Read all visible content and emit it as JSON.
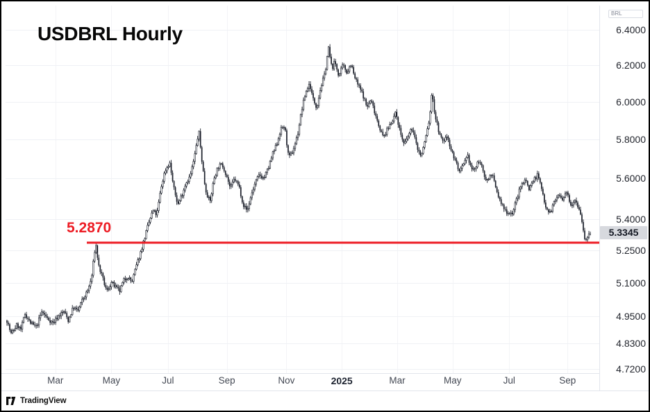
{
  "header": {
    "title": "USDBRL Hourly"
  },
  "level": {
    "label": "5.2870"
  },
  "badge": {
    "label": "5.3345"
  },
  "axis": {
    "currency_label": "BRL"
  },
  "footer": {
    "brand": "TradingView"
  },
  "colors": {
    "up_body": "#ffffff",
    "down_body": "#1a1e29",
    "wick": "#1a1e29",
    "grid_h": "#eff1f5",
    "grid_v": "#f3f4f7",
    "axis_line": "#e2e5ec",
    "level_line": "#ed1c24",
    "badge_bg": "#d7d9de",
    "badge_text": "#131722",
    "tick_text": "#23262e",
    "time_text": "#434853"
  },
  "chart_data": {
    "type": "candlestick",
    "title": "USDBRL Hourly",
    "symbol": "USDBRL",
    "interval": "Hourly",
    "quote_currency": "BRL",
    "y_scale": "log",
    "ylim": [
      4.7,
      6.55
    ],
    "grid": true,
    "last_price": 5.3345,
    "support_level": 5.287,
    "support_level_label": "5.2870",
    "price_ticks": [
      {
        "label": "6.4000",
        "value": 6.4
      },
      {
        "label": "6.2000",
        "value": 6.2
      },
      {
        "label": "6.0000",
        "value": 6.0
      },
      {
        "label": "5.8000",
        "value": 5.8
      },
      {
        "label": "5.6000",
        "value": 5.6
      },
      {
        "label": "5.4000",
        "value": 5.4
      },
      {
        "label": "5.2500",
        "value": 5.25
      },
      {
        "label": "5.1000",
        "value": 5.1
      },
      {
        "label": "4.9500",
        "value": 4.95
      },
      {
        "label": "4.8300",
        "value": 4.83
      },
      {
        "label": "4.7200",
        "value": 4.72
      }
    ],
    "time_ticks": [
      {
        "label": "Mar",
        "t": 0.083,
        "bold": false
      },
      {
        "label": "May",
        "t": 0.179,
        "bold": false
      },
      {
        "label": "Jul",
        "t": 0.276,
        "bold": false
      },
      {
        "label": "Sep",
        "t": 0.377,
        "bold": false
      },
      {
        "label": "Nov",
        "t": 0.479,
        "bold": false
      },
      {
        "label": "2025",
        "t": 0.574,
        "bold": true
      },
      {
        "label": "Mar",
        "t": 0.669,
        "bold": false
      },
      {
        "label": "May",
        "t": 0.764,
        "bold": false
      },
      {
        "label": "Jul",
        "t": 0.861,
        "bold": false
      },
      {
        "label": "Sep",
        "t": 0.961,
        "bold": false
      }
    ],
    "bar_count": 420,
    "path": [
      [
        0,
        4.93
      ],
      [
        0.007,
        4.87
      ],
      [
        0.017,
        4.91
      ],
      [
        0.024,
        4.89
      ],
      [
        0.031,
        4.96
      ],
      [
        0.04,
        4.92
      ],
      [
        0.05,
        4.9
      ],
      [
        0.06,
        4.97
      ],
      [
        0.069,
        4.94
      ],
      [
        0.079,
        4.92
      ],
      [
        0.088,
        4.95
      ],
      [
        0.098,
        4.97
      ],
      [
        0.105,
        4.93
      ],
      [
        0.114,
        4.99
      ],
      [
        0.121,
        4.97
      ],
      [
        0.129,
        5.02
      ],
      [
        0.138,
        5.06
      ],
      [
        0.145,
        5.12
      ],
      [
        0.152,
        5.287
      ],
      [
        0.157,
        5.18
      ],
      [
        0.164,
        5.12
      ],
      [
        0.171,
        5.06
      ],
      [
        0.179,
        5.1
      ],
      [
        0.186,
        5.08
      ],
      [
        0.193,
        5.06
      ],
      [
        0.2,
        5.11
      ],
      [
        0.207,
        5.13
      ],
      [
        0.214,
        5.1
      ],
      [
        0.221,
        5.17
      ],
      [
        0.229,
        5.24
      ],
      [
        0.236,
        5.31
      ],
      [
        0.243,
        5.38
      ],
      [
        0.25,
        5.44
      ],
      [
        0.257,
        5.42
      ],
      [
        0.264,
        5.55
      ],
      [
        0.271,
        5.64
      ],
      [
        0.279,
        5.68
      ],
      [
        0.286,
        5.55
      ],
      [
        0.293,
        5.47
      ],
      [
        0.3,
        5.52
      ],
      [
        0.307,
        5.58
      ],
      [
        0.314,
        5.61
      ],
      [
        0.321,
        5.7
      ],
      [
        0.329,
        5.845
      ],
      [
        0.333,
        5.72
      ],
      [
        0.34,
        5.55
      ],
      [
        0.348,
        5.48
      ],
      [
        0.355,
        5.6
      ],
      [
        0.362,
        5.66
      ],
      [
        0.369,
        5.67
      ],
      [
        0.376,
        5.62
      ],
      [
        0.383,
        5.55
      ],
      [
        0.39,
        5.6
      ],
      [
        0.398,
        5.56
      ],
      [
        0.405,
        5.47
      ],
      [
        0.412,
        5.44
      ],
      [
        0.419,
        5.52
      ],
      [
        0.426,
        5.58
      ],
      [
        0.433,
        5.62
      ],
      [
        0.44,
        5.6
      ],
      [
        0.448,
        5.65
      ],
      [
        0.455,
        5.72
      ],
      [
        0.462,
        5.77
      ],
      [
        0.469,
        5.85
      ],
      [
        0.476,
        5.87
      ],
      [
        0.483,
        5.7
      ],
      [
        0.49,
        5.74
      ],
      [
        0.498,
        5.82
      ],
      [
        0.505,
        5.95
      ],
      [
        0.512,
        6.05
      ],
      [
        0.519,
        6.1
      ],
      [
        0.524,
        6.02
      ],
      [
        0.531,
        5.97
      ],
      [
        0.538,
        6.08
      ],
      [
        0.545,
        6.15
      ],
      [
        0.551,
        6.3
      ],
      [
        0.557,
        6.18
      ],
      [
        0.562,
        6.22
      ],
      [
        0.569,
        6.14
      ],
      [
        0.576,
        6.2
      ],
      [
        0.583,
        6.16
      ],
      [
        0.59,
        6.21
      ],
      [
        0.595,
        6.14
      ],
      [
        0.602,
        6.09
      ],
      [
        0.61,
        6.04
      ],
      [
        0.617,
        5.97
      ],
      [
        0.624,
        6.01
      ],
      [
        0.631,
        5.94
      ],
      [
        0.638,
        5.87
      ],
      [
        0.645,
        5.81
      ],
      [
        0.652,
        5.85
      ],
      [
        0.66,
        5.9
      ],
      [
        0.667,
        5.94
      ],
      [
        0.674,
        5.84
      ],
      [
        0.681,
        5.77
      ],
      [
        0.688,
        5.82
      ],
      [
        0.695,
        5.86
      ],
      [
        0.702,
        5.77
      ],
      [
        0.71,
        5.71
      ],
      [
        0.717,
        5.8
      ],
      [
        0.724,
        5.9
      ],
      [
        0.729,
        6.06
      ],
      [
        0.733,
        5.94
      ],
      [
        0.738,
        5.87
      ],
      [
        0.743,
        5.81
      ],
      [
        0.748,
        5.79
      ],
      [
        0.755,
        5.82
      ],
      [
        0.762,
        5.74
      ],
      [
        0.769,
        5.69
      ],
      [
        0.776,
        5.63
      ],
      [
        0.783,
        5.67
      ],
      [
        0.79,
        5.71
      ],
      [
        0.798,
        5.64
      ],
      [
        0.805,
        5.66
      ],
      [
        0.81,
        5.7
      ],
      [
        0.817,
        5.62
      ],
      [
        0.824,
        5.59
      ],
      [
        0.831,
        5.63
      ],
      [
        0.838,
        5.55
      ],
      [
        0.845,
        5.49
      ],
      [
        0.852,
        5.45
      ],
      [
        0.86,
        5.43
      ],
      [
        0.867,
        5.43
      ],
      [
        0.874,
        5.5
      ],
      [
        0.881,
        5.56
      ],
      [
        0.888,
        5.6
      ],
      [
        0.895,
        5.55
      ],
      [
        0.902,
        5.59
      ],
      [
        0.91,
        5.62
      ],
      [
        0.917,
        5.54
      ],
      [
        0.924,
        5.46
      ],
      [
        0.931,
        5.43
      ],
      [
        0.938,
        5.48
      ],
      [
        0.945,
        5.52
      ],
      [
        0.952,
        5.49
      ],
      [
        0.96,
        5.53
      ],
      [
        0.967,
        5.47
      ],
      [
        0.974,
        5.5
      ],
      [
        0.981,
        5.45
      ],
      [
        0.986,
        5.39
      ],
      [
        0.99,
        5.31
      ],
      [
        0.994,
        5.3
      ],
      [
        1,
        5.334
      ]
    ]
  }
}
